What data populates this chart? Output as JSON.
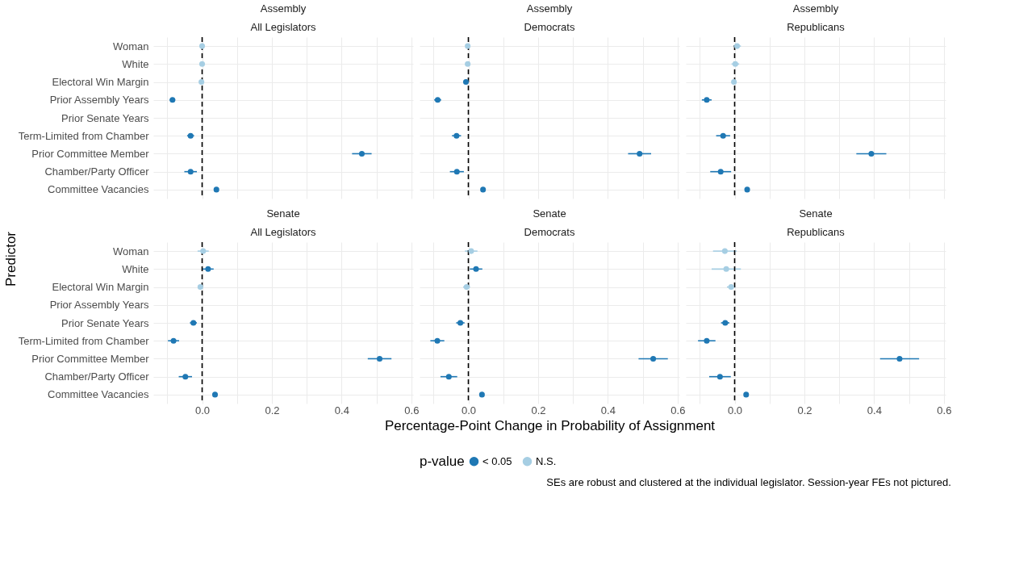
{
  "chart_data": [
    {
      "type": "scatter",
      "orientation": "horizontal",
      "title": "Assembly",
      "subtitle": "All Legislators",
      "ylabel": "Predictor",
      "tick_labels": "y",
      "grid": true,
      "marker": "circle",
      "categories": [
        "Woman",
        "White",
        "Electoral Win Margin",
        "Prior Assembly Years",
        "Prior Senate Years",
        "Term-Limited from Chamber",
        "Prior Committee Member",
        "Chamber/Party Officer",
        "Committee Vacancies"
      ],
      "xlim": [
        -0.14,
        0.605
      ],
      "xticks": [
        {
          "value": -0.1,
          "label": null
        },
        {
          "value": 0,
          "label": null
        },
        {
          "value": 0.1,
          "label": null
        },
        {
          "value": 0.2,
          "label": null
        },
        {
          "value": 0.3,
          "label": null
        },
        {
          "value": 0.4,
          "label": null
        },
        {
          "value": 0.5,
          "label": null
        },
        {
          "value": 0.6,
          "label": null
        }
      ],
      "ref_lines": [
        {
          "axis": "x",
          "value": 0,
          "color": "#000000",
          "line_style": "dashed"
        }
      ],
      "series": [
        {
          "color": "#1f78b4",
          "values": [
            null,
            null,
            null,
            -0.085,
            null,
            -0.033,
            0.458,
            -0.033,
            0.041
          ],
          "errors": [
            null,
            null,
            null,
            0.008,
            null,
            0.01,
            0.028,
            0.018,
            0.003
          ]
        },
        {
          "color": "#a6cee3",
          "values": [
            0.0,
            0.0,
            -0.002,
            null,
            null,
            null,
            null,
            null,
            null
          ],
          "errors": [
            0.003,
            0.003,
            0.003,
            null,
            null,
            null,
            null,
            null,
            null
          ]
        }
      ]
    },
    {
      "type": "scatter",
      "orientation": "horizontal",
      "title": "Assembly",
      "subtitle": "Democrats",
      "tick_labels": false,
      "grid": true,
      "marker": "circle",
      "categories": [
        null,
        null,
        null,
        null,
        null,
        null,
        null,
        null,
        null
      ],
      "xlim": [
        -0.14,
        0.605
      ],
      "xticks": [
        {
          "value": -0.1,
          "label": null
        },
        {
          "value": 0,
          "label": null
        },
        {
          "value": 0.1,
          "label": null
        },
        {
          "value": 0.2,
          "label": null
        },
        {
          "value": 0.3,
          "label": null
        },
        {
          "value": 0.4,
          "label": null
        },
        {
          "value": 0.5,
          "label": null
        },
        {
          "value": 0.6,
          "label": null
        }
      ],
      "ref_lines": [
        {
          "axis": "x",
          "value": 0,
          "color": "#000000",
          "line_style": "dashed"
        }
      ],
      "series": [
        {
          "color": "#1f78b4",
          "values": [
            null,
            null,
            -0.007,
            -0.088,
            null,
            -0.034,
            0.491,
            -0.033,
            0.042
          ],
          "errors": [
            null,
            null,
            0.003,
            0.01,
            null,
            0.013,
            0.033,
            0.02,
            0.003
          ]
        },
        {
          "color": "#a6cee3",
          "values": [
            -0.002,
            -0.002,
            null,
            null,
            null,
            null,
            null,
            null,
            null
          ],
          "errors": [
            0.004,
            0.004,
            null,
            null,
            null,
            null,
            null,
            null,
            null
          ]
        }
      ]
    },
    {
      "type": "scatter",
      "orientation": "horizontal",
      "title": "Assembly",
      "subtitle": "Republicans",
      "tick_labels": false,
      "grid": true,
      "marker": "circle",
      "categories": [
        null,
        null,
        null,
        null,
        null,
        null,
        null,
        null,
        null
      ],
      "xlim": [
        -0.14,
        0.605
      ],
      "xticks": [
        {
          "value": -0.1,
          "label": null
        },
        {
          "value": 0,
          "label": null
        },
        {
          "value": 0.1,
          "label": null
        },
        {
          "value": 0.2,
          "label": null
        },
        {
          "value": 0.3,
          "label": null
        },
        {
          "value": 0.4,
          "label": null
        },
        {
          "value": 0.5,
          "label": null
        },
        {
          "value": 0.6,
          "label": null
        }
      ],
      "ref_lines": [
        {
          "axis": "x",
          "value": 0,
          "color": "#000000",
          "line_style": "dashed"
        }
      ],
      "series": [
        {
          "color": "#1f78b4",
          "values": [
            null,
            null,
            null,
            -0.08,
            null,
            -0.033,
            0.392,
            -0.04,
            0.036
          ],
          "errors": [
            null,
            null,
            null,
            0.014,
            null,
            0.02,
            0.043,
            0.03,
            0.003
          ]
        },
        {
          "color": "#a6cee3",
          "values": [
            0.007,
            0.002,
            -0.002,
            null,
            null,
            null,
            null,
            null,
            null
          ],
          "errors": [
            0.011,
            0.011,
            0.003,
            null,
            null,
            null,
            null,
            null,
            null
          ]
        }
      ]
    },
    {
      "type": "scatter",
      "orientation": "horizontal",
      "title": "Senate",
      "subtitle": "All Legislators",
      "grid": true,
      "marker": "circle",
      "categories": [
        "Woman",
        "White",
        "Electoral Win Margin",
        "Prior Assembly Years",
        "Prior Senate Years",
        "Term-Limited from Chamber",
        "Prior Committee Member",
        "Chamber/Party Officer",
        "Committee Vacancies"
      ],
      "xlim": [
        -0.14,
        0.605
      ],
      "xticks": [
        {
          "value": -0.1,
          "label": null
        },
        {
          "value": 0,
          "label": "0.0"
        },
        {
          "value": 0.1,
          "label": null
        },
        0.2,
        {
          "value": 0.3,
          "label": null
        },
        0.4,
        {
          "value": 0.5,
          "label": null
        },
        0.6
      ],
      "ref_lines": [
        {
          "axis": "x",
          "value": 0,
          "color": "#000000",
          "line_style": "dashed"
        }
      ],
      "series": [
        {
          "color": "#1f78b4",
          "values": [
            null,
            0.017,
            null,
            null,
            -0.025,
            -0.082,
            0.509,
            -0.048,
            0.037
          ],
          "errors": [
            null,
            0.016,
            null,
            null,
            0.01,
            0.016,
            0.034,
            0.019,
            0.003
          ]
        },
        {
          "color": "#a6cee3",
          "values": [
            0.003,
            null,
            -0.005,
            null,
            null,
            null,
            null,
            null,
            null
          ],
          "errors": [
            0.016,
            null,
            0.005,
            null,
            null,
            null,
            null,
            null,
            null
          ]
        }
      ]
    },
    {
      "type": "scatter",
      "orientation": "horizontal",
      "title": "Senate",
      "subtitle": "Democrats",
      "xlabel": "Percentage-Point Change in Probability of Assignment",
      "legend_title": "p-value",
      "legend": "bottom",
      "tick_labels": "x",
      "grid": true,
      "marker": "circle",
      "categories": [
        null,
        null,
        null,
        null,
        null,
        null,
        null,
        null,
        null
      ],
      "xlim": [
        -0.14,
        0.605
      ],
      "xticks": [
        {
          "value": -0.1,
          "label": null
        },
        {
          "value": 0,
          "label": "0.0"
        },
        {
          "value": 0.1,
          "label": null
        },
        0.2,
        {
          "value": 0.3,
          "label": null
        },
        0.4,
        {
          "value": 0.5,
          "label": null
        },
        0.6
      ],
      "ref_lines": [
        {
          "axis": "x",
          "value": 0,
          "color": "#000000",
          "line_style": "dashed"
        }
      ],
      "series": [
        {
          "name": "< 0.05",
          "color": "#1f78b4",
          "values": [
            null,
            0.022,
            null,
            null,
            -0.023,
            -0.089,
            0.53,
            -0.056,
            0.039
          ],
          "errors": [
            null,
            0.018,
            null,
            null,
            0.012,
            0.02,
            0.042,
            0.024,
            0.004
          ]
        },
        {
          "name": "N.S.",
          "color": "#a6cee3",
          "values": [
            0.008,
            null,
            -0.005,
            null,
            null,
            null,
            null,
            null,
            null
          ],
          "errors": [
            0.018,
            null,
            0.01,
            null,
            null,
            null,
            null,
            null,
            null
          ]
        }
      ]
    },
    {
      "type": "scatter",
      "orientation": "horizontal",
      "title": "Senate",
      "subtitle": "Republicans",
      "tick_labels": "x",
      "grid": true,
      "marker": "circle",
      "annotations": [
        "SEs are robust and clustered at the individual legislator. Session-year FEs not pictured."
      ],
      "categories": [
        null,
        null,
        null,
        null,
        null,
        null,
        null,
        null,
        null
      ],
      "xlim": [
        -0.14,
        0.605
      ],
      "xticks": [
        {
          "value": -0.1,
          "label": null
        },
        {
          "value": 0,
          "label": "0.0"
        },
        {
          "value": 0.1,
          "label": null
        },
        0.2,
        {
          "value": 0.3,
          "label": null
        },
        0.4,
        {
          "value": 0.5,
          "label": null
        },
        0.6
      ],
      "ref_lines": [
        {
          "axis": "x",
          "value": 0,
          "color": "#000000",
          "line_style": "dashed"
        }
      ],
      "series": [
        {
          "color": "#1f78b4",
          "values": [
            null,
            null,
            null,
            null,
            -0.027,
            -0.08,
            0.473,
            -0.042,
            0.033
          ],
          "errors": [
            null,
            null,
            null,
            null,
            0.012,
            0.025,
            0.056,
            0.031,
            0.006
          ]
        },
        {
          "color": "#a6cee3",
          "values": [
            -0.028,
            -0.024,
            -0.01,
            null,
            null,
            null,
            null,
            null,
            null
          ],
          "errors": [
            0.034,
            0.042,
            0.012,
            null,
            null,
            null,
            null,
            null,
            null
          ]
        }
      ]
    }
  ]
}
